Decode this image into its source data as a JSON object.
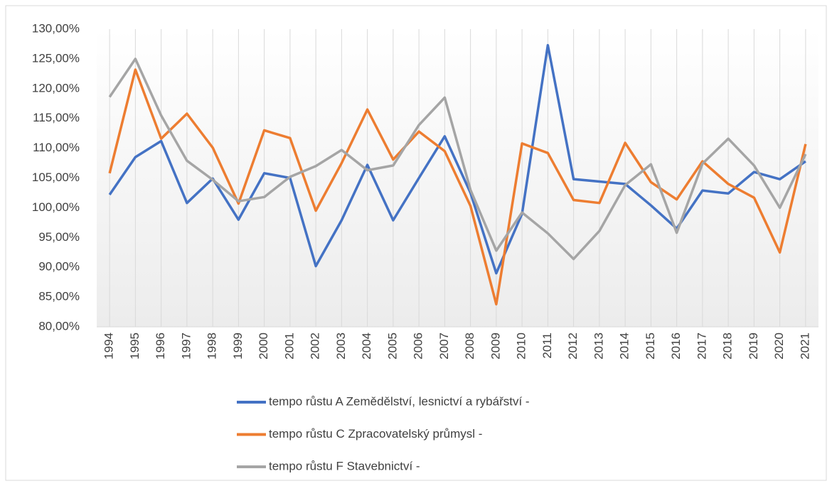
{
  "chart_data": {
    "type": "line",
    "categories": [
      "1994",
      "1995",
      "1996",
      "1997",
      "1998",
      "1999",
      "2000",
      "2001",
      "2002",
      "2003",
      "2004",
      "2005",
      "2006",
      "2007",
      "2008",
      "2009",
      "2010",
      "2011",
      "2012",
      "2013",
      "2014",
      "2015",
      "2016",
      "2017",
      "2018",
      "2019",
      "2020",
      "2021"
    ],
    "series": [
      {
        "name": "tempo růstu A Zemědělství, lesnictví a rybářství -",
        "color": "#4472c4",
        "values": [
          102.2,
          108.5,
          111.2,
          100.8,
          104.9,
          98.0,
          105.8,
          105.0,
          90.2,
          97.9,
          107.2,
          97.9,
          105.0,
          112.0,
          102.5,
          89.0,
          99.0,
          127.3,
          104.8,
          104.4,
          104.0,
          100.4,
          96.5,
          102.9,
          102.4,
          106.0,
          104.8,
          107.8
        ]
      },
      {
        "name": "tempo růstu C Zpracovatelský průmysl -",
        "color": "#ed7d31",
        "values": [
          105.8,
          123.2,
          111.6,
          115.8,
          110.1,
          100.7,
          113.0,
          111.7,
          99.5,
          107.5,
          116.5,
          108.1,
          112.8,
          109.5,
          100.3,
          83.8,
          110.8,
          109.2,
          101.3,
          100.8,
          110.9,
          104.3,
          101.4,
          107.8,
          104.0,
          101.7,
          92.5,
          110.7
        ]
      },
      {
        "name": "tempo růstu F Stavebnictví -",
        "color": "#a5a5a5",
        "values": [
          118.6,
          125.0,
          115.5,
          107.9,
          104.7,
          101.1,
          101.8,
          105.2,
          107.0,
          109.7,
          106.3,
          107.1,
          113.9,
          118.5,
          103.0,
          92.8,
          99.2,
          95.7,
          91.4,
          96.1,
          103.8,
          107.3,
          95.8,
          107.4,
          111.6,
          107.1,
          100.0,
          109.0
        ]
      }
    ],
    "ylim": [
      80,
      130
    ],
    "yticks": [
      {
        "value": 80,
        "label": "80,00%"
      },
      {
        "value": 85,
        "label": "85,00%"
      },
      {
        "value": 90,
        "label": "90,00%"
      },
      {
        "value": 95,
        "label": "95,00%"
      },
      {
        "value": 100,
        "label": "100,00%"
      },
      {
        "value": 105,
        "label": "105,00%"
      },
      {
        "value": 110,
        "label": "110,00%"
      },
      {
        "value": 115,
        "label": "115,00%"
      },
      {
        "value": 120,
        "label": "120,00%"
      },
      {
        "value": 125,
        "label": "125,00%"
      },
      {
        "value": 130,
        "label": "130,00%"
      }
    ],
    "grid": true,
    "legend": "bottom"
  }
}
